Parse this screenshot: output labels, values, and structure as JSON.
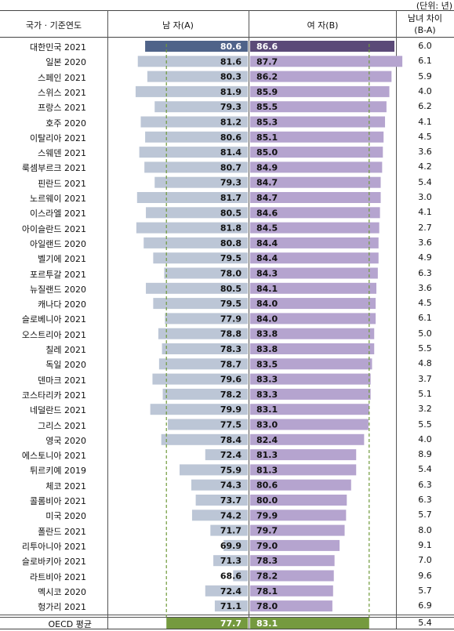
{
  "unit": "(단위: 년)",
  "headers": {
    "country": "국가 · 기준연도",
    "male": "남 자(A)",
    "female": "여 자(B)",
    "diff_line1": "남녀 차이",
    "diff_line2": "(B-A)"
  },
  "colors": {
    "male": "#bcc6d6",
    "male_highlight": "#4f6389",
    "female": "#b5a4cf",
    "female_highlight": "#5b4a78",
    "oecd": "#759a3f",
    "guide": "#6f9a3a"
  },
  "chart_data": {
    "type": "bar",
    "title": "",
    "xlabel": "",
    "ylabel": "",
    "categories": [
      "대한민국 2021",
      "일본 2020",
      "스페인 2021",
      "스위스 2021",
      "프랑스 2021",
      "호주 2020",
      "이탈리아 2021",
      "스웨덴 2021",
      "룩셈부르크 2021",
      "핀란드 2021",
      "노르웨이 2021",
      "이스라엘 2021",
      "아이슬란드 2021",
      "아일랜드 2020",
      "벨기에 2021",
      "포르투갈 2021",
      "뉴질랜드 2020",
      "캐나다 2020",
      "슬로베니아 2021",
      "오스트리아 2021",
      "칠레 2021",
      "독일 2020",
      "덴마크 2021",
      "코스타리카 2021",
      "네덜란드 2021",
      "그리스 2021",
      "영국 2020",
      "에스토니아 2021",
      "튀르키예 2019",
      "체코 2021",
      "콜롬비아 2021",
      "미국 2020",
      "폴란드 2021",
      "리투아니아 2021",
      "슬로바키아 2021",
      "라트비아 2021",
      "멕시코 2020",
      "헝가리 2021",
      "OECD 평균"
    ],
    "series": [
      {
        "name": "남 자(A)",
        "values": [
          80.6,
          81.6,
          80.3,
          81.9,
          79.3,
          81.2,
          80.6,
          81.4,
          80.7,
          79.3,
          81.7,
          80.5,
          81.8,
          80.8,
          79.5,
          78.0,
          80.5,
          79.5,
          77.9,
          78.8,
          78.3,
          78.7,
          79.6,
          78.2,
          79.9,
          77.5,
          78.4,
          72.4,
          75.9,
          74.3,
          73.7,
          74.2,
          71.7,
          69.9,
          71.3,
          68.6,
          72.4,
          71.1,
          77.7
        ]
      },
      {
        "name": "여 자(B)",
        "values": [
          86.6,
          87.7,
          86.2,
          85.9,
          85.5,
          85.3,
          85.1,
          85.0,
          84.9,
          84.7,
          84.7,
          84.6,
          84.5,
          84.4,
          84.4,
          84.3,
          84.1,
          84.0,
          84.0,
          83.8,
          83.8,
          83.5,
          83.3,
          83.3,
          83.1,
          83.0,
          82.4,
          81.3,
          81.3,
          80.6,
          80.0,
          79.9,
          79.7,
          79.0,
          78.3,
          78.2,
          78.1,
          78.0,
          83.1
        ]
      }
    ],
    "diff": [
      "6.0",
      "6.1",
      "5.9",
      "4.0",
      "6.2",
      "4.1",
      "4.5",
      "3.6",
      "4.2",
      "5.4",
      "3.0",
      "4.1",
      "2.7",
      "3.6",
      "4.9",
      "6.3",
      "3.6",
      "4.5",
      "6.1",
      "5.0",
      "5.5",
      "4.8",
      "3.7",
      "5.1",
      "3.2",
      "5.5",
      "4.0",
      "8.9",
      "5.4",
      "6.3",
      "6.3",
      "5.7",
      "8.0",
      "9.1",
      "7.0",
      "9.6",
      "5.7",
      "6.9",
      "5.4"
    ],
    "reference_lines": {
      "male": 77.7,
      "female": 83.1
    }
  }
}
